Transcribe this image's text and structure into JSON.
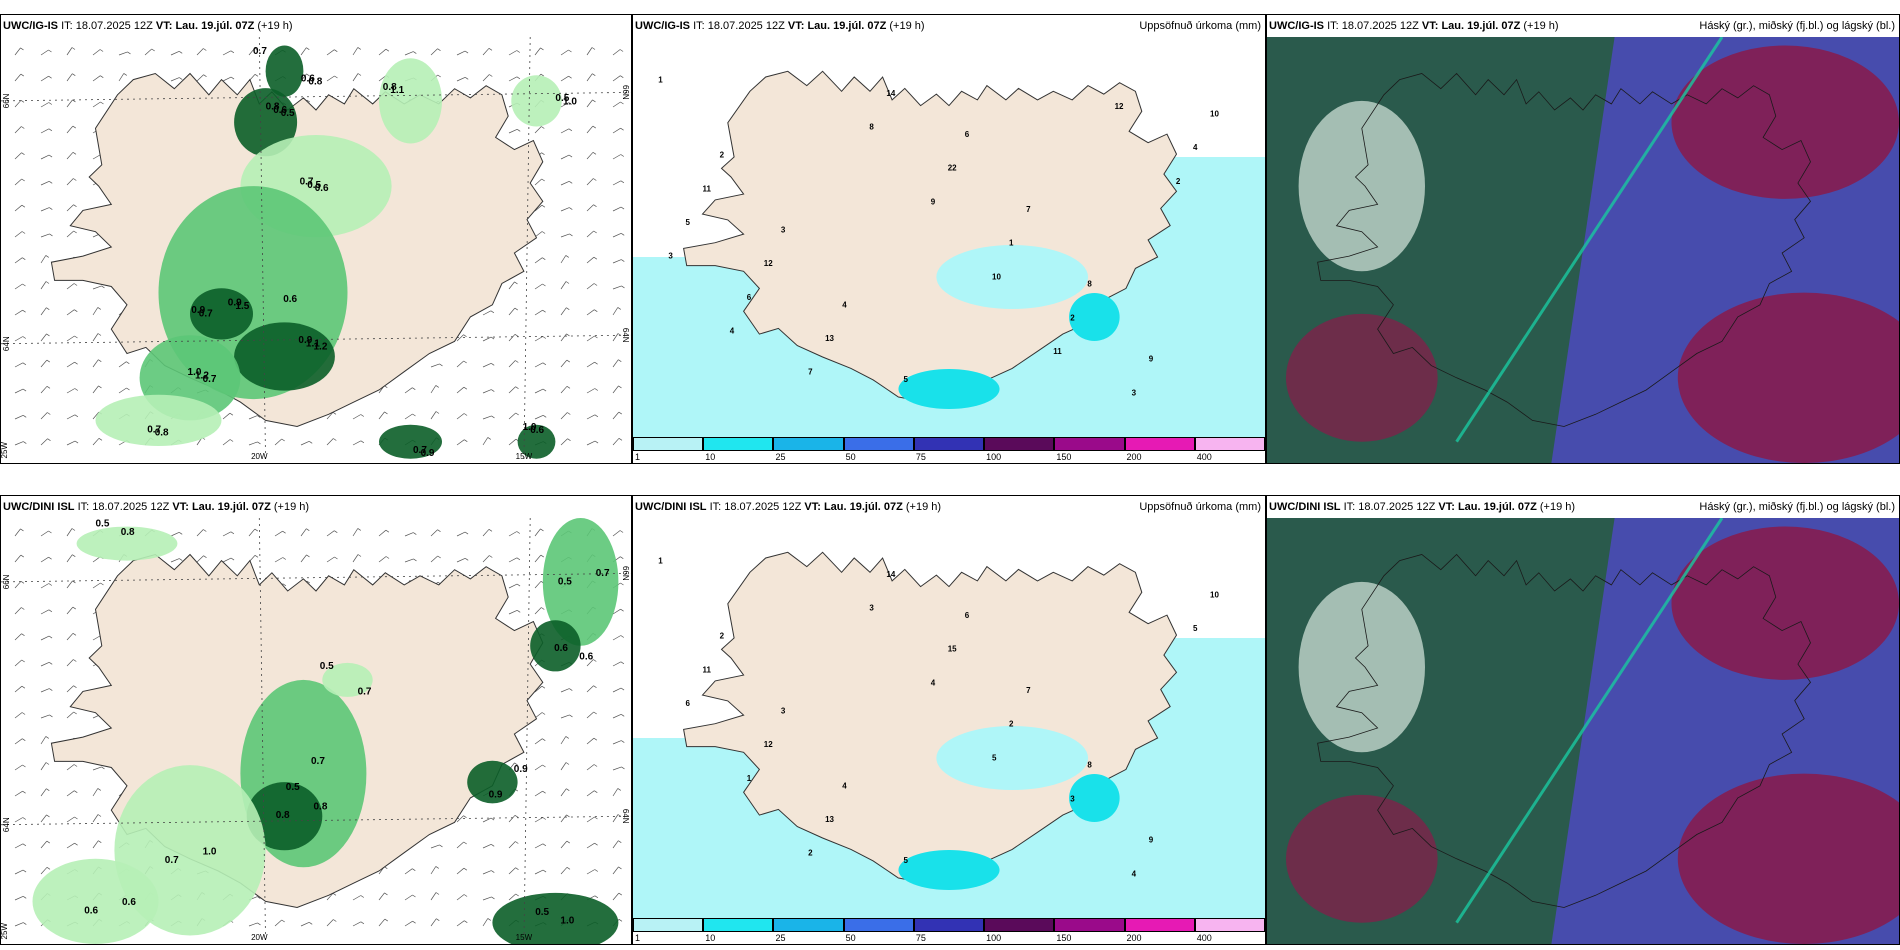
{
  "panels": [
    {
      "id": "p1",
      "model": "UWC/IG-IS",
      "it_label": "IT:",
      "it": "18.07.2025 12Z",
      "vt_label": "VT:",
      "vt": "Lau. 19.júl. 07Z",
      "lead": "(+19 h)",
      "right_title": "",
      "kind": "rain"
    },
    {
      "id": "p2",
      "model": "UWC/IG-IS",
      "it_label": "IT:",
      "it": "18.07.2025 12Z",
      "vt_label": "VT:",
      "vt": "Lau. 19.júl. 07Z",
      "lead": "(+19 h)",
      "right_title": "Uppsöfnuð úrkoma (mm)",
      "kind": "accum"
    },
    {
      "id": "p3",
      "model": "UWC/IG-IS",
      "it_label": "IT:",
      "it": "18.07.2025 12Z",
      "vt_label": "VT:",
      "vt": "Lau. 19.júl. 07Z",
      "lead": "(+19 h)",
      "right_title": "Háský (gr.), miðský (fj.bl.) og lágský (bl.)",
      "kind": "cloud"
    },
    {
      "id": "p4",
      "model": "UWC/DINI ISL",
      "it_label": "IT:",
      "it": "18.07.2025 12Z",
      "vt_label": "VT:",
      "vt": "Lau. 19.júl. 07Z",
      "lead": "(+19 h)",
      "right_title": "",
      "kind": "rain"
    },
    {
      "id": "p5",
      "model": "UWC/DINI ISL",
      "it_label": "IT:",
      "it": "18.07.2025 12Z",
      "vt_label": "VT:",
      "vt": "Lau. 19.júl. 07Z",
      "lead": "(+19 h)",
      "right_title": "Uppsöfnuð úrkoma (mm)",
      "kind": "accum"
    },
    {
      "id": "p6",
      "model": "UWC/DINI ISL",
      "it_label": "IT:",
      "it": "18.07.2025 12Z",
      "vt_label": "VT:",
      "vt": "Lau. 19.júl. 07Z",
      "lead": "(+19 h)",
      "right_title": "Háský (gr.), miðský (fj.bl.) og lágský (bl.)",
      "kind": "cloud"
    }
  ],
  "axis_labels": {
    "lat66": "66N",
    "lat64": "64N",
    "lon25": "25W",
    "lon20": "20W",
    "lon15": "15W"
  },
  "colorbar": {
    "ticks": [
      "1",
      "10",
      "25",
      "50",
      "75",
      "100",
      "150",
      "200",
      "400"
    ],
    "colors": [
      "#b8f2f5",
      "#20e6ef",
      "#1ab4e8",
      "#3a6ee8",
      "#3232b4",
      "#5a0a5a",
      "#9a0a8a",
      "#e61ab4",
      "#f7b4f0"
    ]
  },
  "colors": {
    "land": "#f3e6d8",
    "sea": "#ffffff",
    "rain_light": "#b6efb6",
    "rain_mid": "#5cc777",
    "rain_dark": "#0b5e28",
    "accum_light": "#aff6f8",
    "accum_mid": "#19e1ea",
    "cloud_high": "#2a5a4c",
    "cloud_mid": "#4a4ab8",
    "cloud_low": "#8a1a4a"
  },
  "values": {
    "p1": [
      "0.7",
      "0.5",
      "0.6",
      "1.5",
      "1.2",
      "0.7",
      "0.8",
      "1.1",
      "1.0",
      "0.9",
      "0.6",
      "0.7",
      "0.8",
      "0.6",
      "0.5",
      "0.9",
      "1.1",
      "1.2",
      "0.7",
      "0.8",
      "0.5",
      "0.7",
      "1.0",
      "0.9",
      "0.6",
      "0.8",
      "0.7",
      "0.6",
      "0.9",
      "1.0"
    ],
    "p2": [
      "1",
      "2",
      "3",
      "4",
      "5",
      "6",
      "7",
      "8",
      "9",
      "10",
      "11",
      "12",
      "13",
      "14",
      "22",
      "1",
      "2",
      "3",
      "4",
      "5",
      "6",
      "7",
      "8",
      "9",
      "10",
      "11",
      "12",
      "2",
      "3",
      "4"
    ],
    "p4": [
      "0.5",
      "0.7",
      "0.6",
      "0.5",
      "0.8",
      "1.0",
      "0.9",
      "0.5",
      "0.6",
      "0.7",
      "0.8",
      "0.5",
      "0.6",
      "0.7",
      "0.8",
      "0.7",
      "0.9",
      "1.0",
      "0.6",
      "0.5"
    ],
    "p5": [
      "1",
      "2",
      "3",
      "4",
      "5",
      "6",
      "7",
      "8",
      "9",
      "10",
      "11",
      "12",
      "13",
      "14",
      "15",
      "2",
      "3",
      "4",
      "5",
      "6",
      "1",
      "2",
      "3",
      "4",
      "5"
    ]
  }
}
